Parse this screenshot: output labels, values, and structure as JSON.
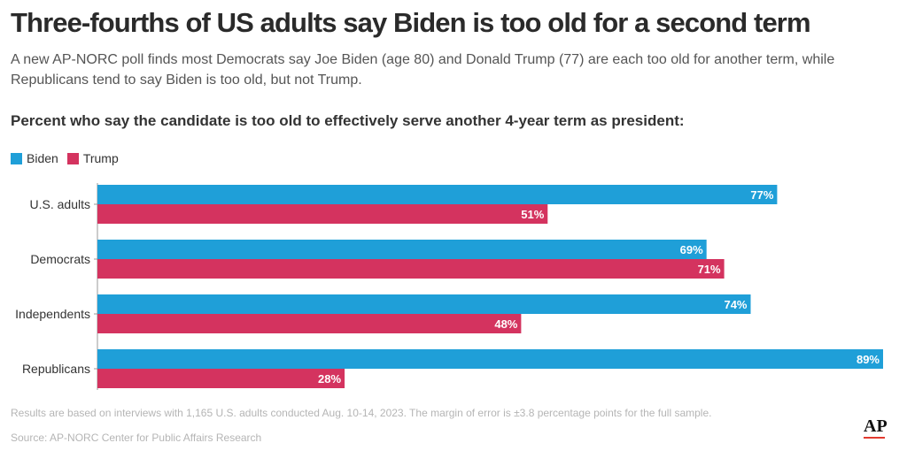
{
  "title": "Three-fourths of US adults say Biden is too old for a second term",
  "subtitle": "A new AP-NORC poll finds most Democrats say Joe Biden (age 80) and Donald Trump (77) are each too old for another term, while Republicans tend to say Biden is too old, but not Trump.",
  "question": "Percent who say the candidate is too old to effectively serve another 4-year term as president:",
  "note": "Results are based on interviews with 1,165 U.S. adults conducted Aug. 10-14, 2023. The margin of error is ±3.8 percentage points for the full sample.",
  "source": "Source: AP-NORC Center for Public Affairs Research",
  "logo": "AP",
  "colors": {
    "biden": "#1f9fd8",
    "trump": "#d4335f"
  },
  "chart_data": {
    "type": "bar",
    "orientation": "horizontal",
    "categories": [
      "U.S. adults",
      "Democrats",
      "Independents",
      "Republicans"
    ],
    "series": [
      {
        "name": "Biden",
        "values": [
          77,
          69,
          74,
          89
        ],
        "labels": [
          "77%",
          "69%",
          "74%",
          "89%"
        ],
        "color": "#1f9fd8"
      },
      {
        "name": "Trump",
        "values": [
          51,
          71,
          48,
          28
        ],
        "labels": [
          "51%",
          "71%",
          "48%",
          "28%"
        ],
        "color": "#d4335f"
      }
    ],
    "xlim": [
      0,
      89
    ],
    "legend_position": "top-left",
    "grid": false
  }
}
